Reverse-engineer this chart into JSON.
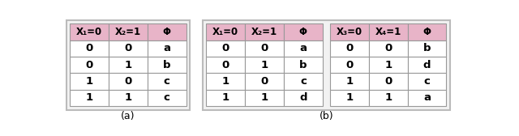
{
  "figure_bg": "#ffffff",
  "outer_box_edge": "#bbbbbb",
  "outer_box_face": "#f2f2f2",
  "header_bg": "#e8b4c8",
  "cell_bg": "#ffffff",
  "grid_color": "#999999",
  "text_color": "#000000",
  "caption_a": "(a)",
  "caption_b": "(b)",
  "table_a": {
    "headers": [
      "X₁=0",
      "X₂=1",
      "Φ"
    ],
    "rows": [
      [
        "0",
        "0",
        "a"
      ],
      [
        "0",
        "1",
        "b"
      ],
      [
        "1",
        "0",
        "c"
      ],
      [
        "1",
        "1",
        "c"
      ]
    ]
  },
  "table_b1": {
    "headers": [
      "X₁=0",
      "X₂=1",
      "Φ"
    ],
    "rows": [
      [
        "0",
        "0",
        "a"
      ],
      [
        "0",
        "1",
        "b"
      ],
      [
        "1",
        "0",
        "c"
      ],
      [
        "1",
        "1",
        "d"
      ]
    ]
  },
  "table_b2": {
    "headers": [
      "X₃=0",
      "X₄=1",
      "Φ"
    ],
    "rows": [
      [
        "0",
        "0",
        "b"
      ],
      [
        "0",
        "1",
        "d"
      ],
      [
        "1",
        "0",
        "c"
      ],
      [
        "1",
        "1",
        "a"
      ]
    ]
  }
}
